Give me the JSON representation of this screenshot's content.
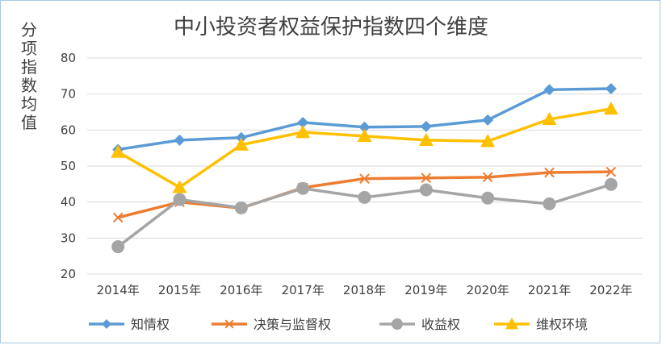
{
  "chart_data": {
    "type": "line",
    "title": "中小投资者权益保护指数四个维度",
    "ylabel_chars": [
      "分",
      "项",
      "指",
      "数",
      "均",
      "值"
    ],
    "xlabel": "",
    "categories": [
      "2014年",
      "2015年",
      "2016年",
      "2017年",
      "2018年",
      "2019年",
      "2020年",
      "2021年",
      "2022年"
    ],
    "ylim": [
      20,
      80
    ],
    "yticks": [
      "20",
      "30",
      "40",
      "50",
      "60",
      "70",
      "80"
    ],
    "grid": "horizontal",
    "legend_position": "bottom",
    "series": [
      {
        "name": "知情权",
        "color": "#5b9bd5",
        "marker": "diamond",
        "values": [
          54.6,
          57.2,
          57.9,
          62.1,
          60.8,
          61.0,
          62.8,
          71.2,
          71.5
        ]
      },
      {
        "name": "决策与监督权",
        "color": "#ed7d31",
        "marker": "x",
        "values": [
          35.7,
          40.0,
          38.3,
          44.0,
          46.5,
          46.7,
          46.9,
          48.2,
          48.4
        ]
      },
      {
        "name": "收益权",
        "color": "#a5a5a5",
        "marker": "circle",
        "values": [
          27.6,
          40.7,
          38.4,
          43.8,
          41.3,
          43.4,
          41.1,
          39.5,
          44.9
        ]
      },
      {
        "name": "维权环境",
        "color": "#ffc000",
        "marker": "triangle",
        "values": [
          53.9,
          44.1,
          55.9,
          59.4,
          58.3,
          57.2,
          56.9,
          63.0,
          65.9
        ]
      }
    ]
  }
}
